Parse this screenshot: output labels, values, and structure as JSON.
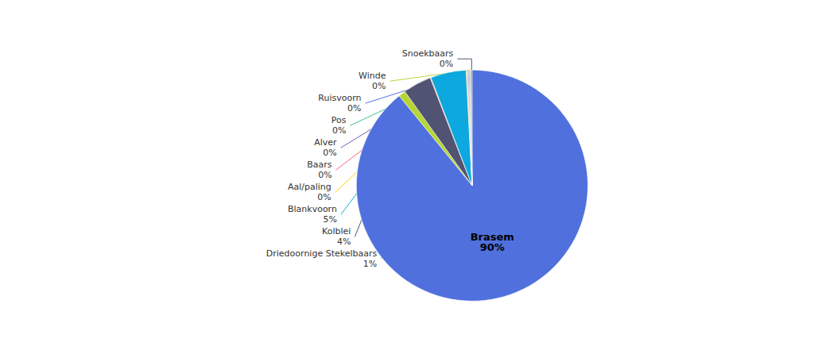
{
  "chart_data": {
    "type": "pie",
    "categories": [
      "Brasem",
      "Driedoornige Stekelbaars",
      "Kolblei",
      null,
      "Blankvoorn",
      "Aal/paling",
      "Baars",
      "Alver",
      "Pos",
      "Ruisvoorn",
      "Winde",
      "Snoekbaars"
    ],
    "values": [
      90,
      1,
      4,
      0.12,
      5,
      0.12,
      0.12,
      0.12,
      0.12,
      0.12,
      0.12,
      0.12
    ],
    "value_labels": [
      "90%",
      "1%",
      "4%",
      null,
      "5%",
      "0%",
      "0%",
      "0%",
      "0%",
      "0%",
      "0%",
      "0%"
    ],
    "data_labels": true
  }
}
